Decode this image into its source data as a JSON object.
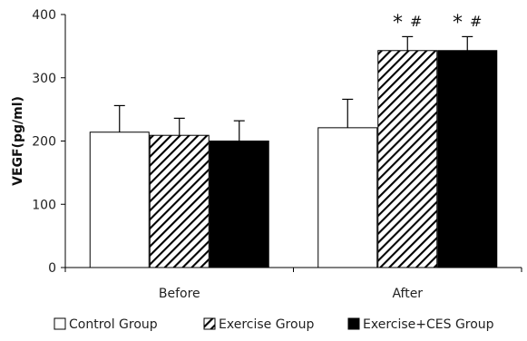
{
  "chart_data": {
    "type": "bar",
    "categories": [
      "Before",
      "After"
    ],
    "series": [
      {
        "name": "Control Group",
        "values": [
          214,
          221
        ],
        "errors": [
          42,
          45
        ],
        "fill": "pattern-none",
        "color": "#ffffff"
      },
      {
        "name": "Exercise Group",
        "values": [
          209,
          343
        ],
        "errors": [
          27,
          22
        ],
        "fill": "pattern-diagonal-hatch",
        "color": "#000000"
      },
      {
        "name": "Exercise+CES Group",
        "values": [
          200,
          343
        ],
        "errors": [
          32,
          22
        ],
        "fill": "pattern-solid",
        "color": "#000000"
      }
    ],
    "annotations": [
      {
        "category": "After",
        "series": "Exercise Group",
        "text": "* #"
      },
      {
        "category": "After",
        "series": "Exercise+CES Group",
        "text": "* #"
      }
    ],
    "title": "",
    "xlabel": "",
    "ylabel": "VEGF(pg/ml)",
    "ylim": [
      0,
      400
    ],
    "yticks": [
      0,
      100,
      200,
      300,
      400
    ],
    "grid": false,
    "legend_position": "bottom"
  }
}
